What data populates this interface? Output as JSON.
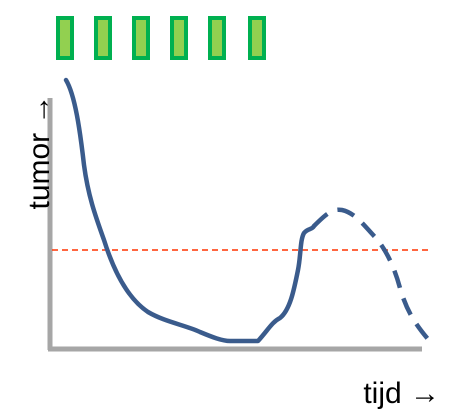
{
  "labels": {
    "y_axis": "tumor →",
    "x_axis": "tijd →"
  },
  "treatment_markers": {
    "count": 6,
    "fill": "#92d050",
    "stroke": "#00b050"
  },
  "colors": {
    "axis": "#a6a6a6",
    "tumor_curve": "#3a5b8c",
    "threshold_line": "#ff3300"
  },
  "curve_style": {
    "solid_segment": "measured",
    "dashed_segment": "projected"
  }
}
